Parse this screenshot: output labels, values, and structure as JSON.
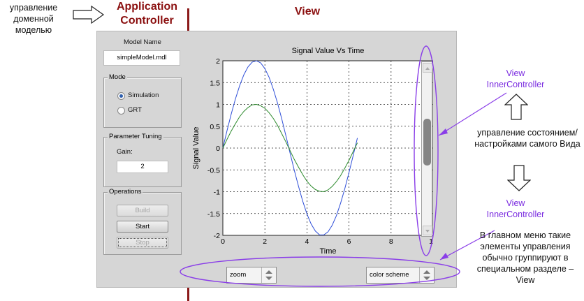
{
  "annotations": {
    "left_note": "управление доменной моделью",
    "application_controller": "Application Controller",
    "view_title": "View",
    "view_inner_controller_1": "View InnerController",
    "view_state_note": "управление состоянием/настройками самого Вида",
    "view_inner_controller_2": "View InnerController",
    "menu_note": "В главном меню такие элементы управления обычно группируют в специальном разделе – View"
  },
  "gui": {
    "model_name_label": "Model Name",
    "model_name_value": "simpleModel.mdl",
    "mode": {
      "title": "Mode",
      "options": [
        "Simulation",
        "GRT"
      ],
      "selected": "Simulation"
    },
    "parameter_tuning": {
      "title": "Parameter Tuning",
      "gain_label": "Gain:",
      "gain_value": "2"
    },
    "operations": {
      "title": "Operations",
      "build_label": "Build",
      "start_label": "Start",
      "stop_label": "Stop"
    },
    "zoom_popup": "zoom",
    "color_scheme_popup": "color scheme"
  },
  "chart_data": {
    "type": "line",
    "title": "Signal Value Vs Time",
    "xlabel": "Time",
    "ylabel": "Signal Value",
    "xlim": [
      0,
      10
    ],
    "ylim": [
      -2,
      2
    ],
    "xticks": [
      "0",
      "2",
      "4",
      "6",
      "8",
      "10"
    ],
    "yticks": [
      "2",
      "1.5",
      "1",
      "0.5",
      "0",
      "-0.5",
      "-1",
      "-1.5",
      "-2"
    ],
    "grid": true,
    "series": [
      {
        "color": "#2f4fd8",
        "x": [
          0,
          0.2,
          0.4,
          0.6,
          0.8,
          1.0,
          1.2,
          1.4,
          1.6,
          1.8,
          2.0,
          2.2,
          2.4,
          2.6,
          2.8,
          3.0,
          3.2,
          3.4,
          3.6,
          3.8,
          4.0,
          4.2,
          4.4,
          4.6,
          4.8,
          5.0,
          5.2,
          5.4,
          5.6,
          5.8,
          6.0,
          6.2,
          6.4
        ],
        "y": [
          0,
          0.4,
          0.78,
          1.13,
          1.43,
          1.68,
          1.86,
          1.97,
          2.0,
          1.95,
          1.82,
          1.62,
          1.35,
          1.03,
          0.67,
          0.28,
          -0.12,
          -0.51,
          -0.88,
          -1.22,
          -1.51,
          -1.74,
          -1.9,
          -1.99,
          -1.99,
          -1.92,
          -1.77,
          -1.55,
          -1.26,
          -0.93,
          -0.56,
          -0.17,
          0.23
        ]
      },
      {
        "color": "#2c8a2c",
        "x": [
          0,
          0.2,
          0.4,
          0.6,
          0.8,
          1.0,
          1.2,
          1.4,
          1.6,
          1.8,
          2.0,
          2.2,
          2.4,
          2.6,
          2.8,
          3.0,
          3.2,
          3.4,
          3.6,
          3.8,
          4.0,
          4.2,
          4.4,
          4.6,
          4.8,
          5.0,
          5.2,
          5.4,
          5.6,
          5.8,
          6.0,
          6.2,
          6.4
        ],
        "y": [
          0,
          0.2,
          0.39,
          0.56,
          0.72,
          0.84,
          0.93,
          0.99,
          1.0,
          0.97,
          0.91,
          0.81,
          0.68,
          0.52,
          0.33,
          0.14,
          -0.06,
          -0.26,
          -0.44,
          -0.61,
          -0.76,
          -0.87,
          -0.95,
          -0.99,
          -1.0,
          -0.96,
          -0.88,
          -0.77,
          -0.63,
          -0.46,
          -0.28,
          -0.08,
          0.12
        ]
      }
    ]
  },
  "colors": {
    "accent_red": "#8b1010",
    "annotation_purple": "#7a2be0"
  }
}
